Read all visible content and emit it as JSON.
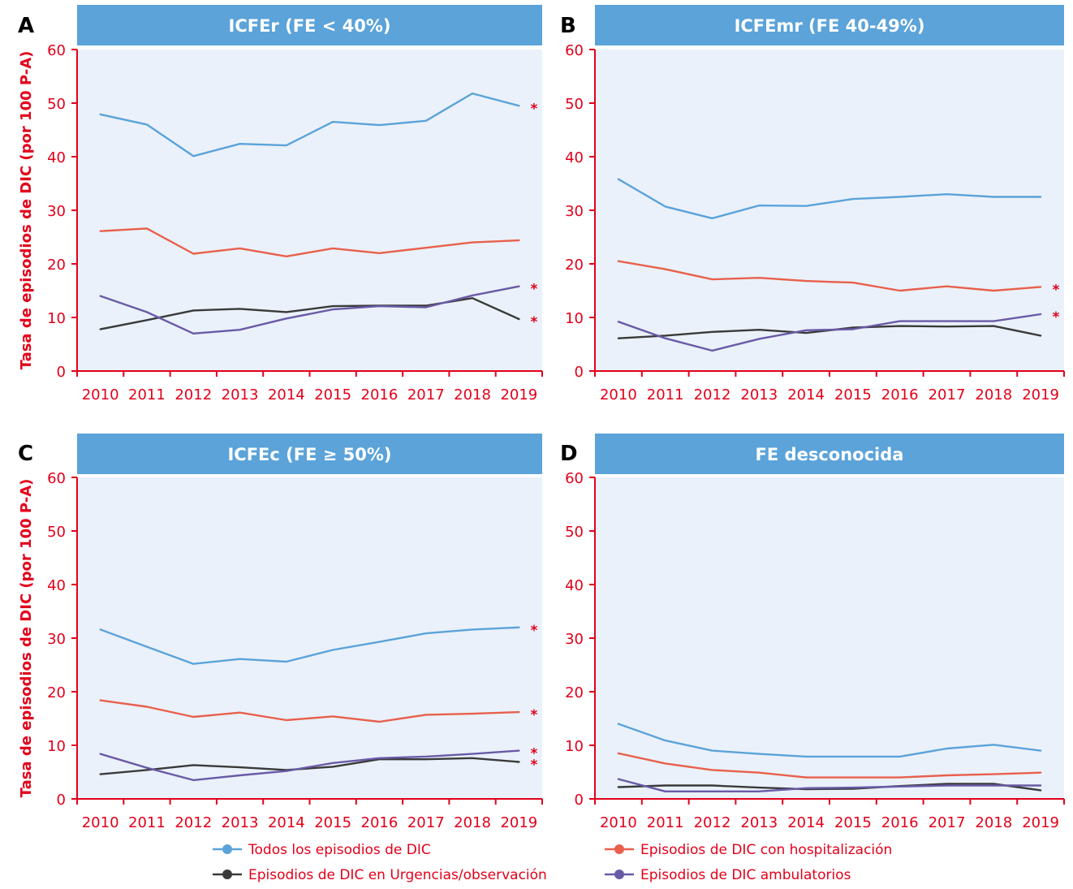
{
  "chart_data": [
    {
      "type": "line",
      "panel": "A",
      "title": "ICFEr (FE < 40%)",
      "ylabel": "Tasa de episodios de DIC (por 100 P-A)",
      "xlabel": "",
      "ylim": [
        0,
        60
      ],
      "yticks": [
        0,
        10,
        20,
        30,
        40,
        50,
        60
      ],
      "x": [
        2010,
        2011,
        2012,
        2013,
        2014,
        2015,
        2016,
        2017,
        2018,
        2019
      ],
      "grid": false,
      "series": [
        {
          "name": "Todos los episodios de DIC",
          "color": "#5ba3d9",
          "values": [
            47.9,
            46.0,
            40.1,
            42.4,
            42.1,
            46.5,
            45.9,
            46.7,
            51.8,
            49.5
          ],
          "marked": true
        },
        {
          "name": "Episodios de DIC con hospitalización",
          "color": "#e8604c",
          "values": [
            26.1,
            26.6,
            21.9,
            22.9,
            21.4,
            22.9,
            22.0,
            23.0,
            24.0,
            24.4
          ],
          "marked": false
        },
        {
          "name": "Episodios de DIC en Urgencias/observación",
          "color": "#3a3a3a",
          "values": [
            7.8,
            9.5,
            11.3,
            11.6,
            11.0,
            12.1,
            12.2,
            12.2,
            13.6,
            9.7
          ],
          "marked": true
        },
        {
          "name": "Episodios de DIC ambulatorios",
          "color": "#6a5aa6",
          "values": [
            14.0,
            11.0,
            7.0,
            7.7,
            9.8,
            11.5,
            12.1,
            11.9,
            14.1,
            15.8
          ],
          "marked": true
        }
      ]
    },
    {
      "type": "line",
      "panel": "B",
      "title": "ICFEmr (FE 40-49%)",
      "ylabel": "",
      "xlabel": "",
      "ylim": [
        0,
        60
      ],
      "yticks": [
        0,
        10,
        20,
        30,
        40,
        50,
        60
      ],
      "x": [
        2010,
        2011,
        2012,
        2013,
        2014,
        2015,
        2016,
        2017,
        2018,
        2019
      ],
      "grid": false,
      "series": [
        {
          "name": "Todos los episodios de DIC",
          "color": "#5ba3d9",
          "values": [
            35.8,
            30.7,
            28.5,
            30.9,
            30.8,
            32.1,
            32.5,
            33.0,
            32.5,
            32.5
          ],
          "marked": false
        },
        {
          "name": "Episodios de DIC con hospitalización",
          "color": "#e8604c",
          "values": [
            20.5,
            19.0,
            17.1,
            17.4,
            16.8,
            16.5,
            15.0,
            15.8,
            15.0,
            15.7
          ],
          "marked": true
        },
        {
          "name": "Episodios de DIC en Urgencias/observación",
          "color": "#3a3a3a",
          "values": [
            6.1,
            6.6,
            7.3,
            7.7,
            7.1,
            8.1,
            8.4,
            8.3,
            8.4,
            6.6
          ],
          "marked": false
        },
        {
          "name": "Episodios de DIC ambulatorios",
          "color": "#6a5aa6",
          "values": [
            9.2,
            6.1,
            3.8,
            6.0,
            7.6,
            7.8,
            9.3,
            9.3,
            9.3,
            10.6
          ],
          "marked": true
        }
      ]
    },
    {
      "type": "line",
      "panel": "C",
      "title": "ICFEc (FE ≥ 50%)",
      "ylabel": "Tasa de episodios de DIC (por 100 P-A)",
      "xlabel": "",
      "ylim": [
        0,
        60
      ],
      "yticks": [
        0,
        10,
        20,
        30,
        40,
        50,
        60
      ],
      "x": [
        2010,
        2011,
        2012,
        2013,
        2014,
        2015,
        2016,
        2017,
        2018,
        2019
      ],
      "grid": false,
      "series": [
        {
          "name": "Todos los episodios de DIC",
          "color": "#5ba3d9",
          "values": [
            31.6,
            28.4,
            25.2,
            26.1,
            25.6,
            27.8,
            29.3,
            30.9,
            31.6,
            32.0
          ],
          "marked": true
        },
        {
          "name": "Episodios de DIC con hospitalización",
          "color": "#e8604c",
          "values": [
            18.4,
            17.2,
            15.3,
            16.1,
            14.7,
            15.4,
            14.4,
            15.7,
            15.9,
            16.2
          ],
          "marked": true
        },
        {
          "name": "Episodios de DIC en Urgencias/observación",
          "color": "#3a3a3a",
          "values": [
            4.6,
            5.4,
            6.3,
            5.9,
            5.4,
            6.0,
            7.4,
            7.4,
            7.6,
            6.9
          ],
          "marked": true
        },
        {
          "name": "Episodios de DIC ambulatorios",
          "color": "#6a5aa6",
          "values": [
            8.4,
            5.8,
            3.5,
            4.4,
            5.2,
            6.7,
            7.6,
            7.9,
            8.4,
            9.0
          ],
          "marked": true
        }
      ]
    },
    {
      "type": "line",
      "panel": "D",
      "title": "FE desconocida",
      "ylabel": "",
      "xlabel": "",
      "ylim": [
        0,
        60
      ],
      "yticks": [
        0,
        10,
        20,
        30,
        40,
        50,
        60
      ],
      "x": [
        2010,
        2011,
        2012,
        2013,
        2014,
        2015,
        2016,
        2017,
        2018,
        2019
      ],
      "grid": false,
      "series": [
        {
          "name": "Todos los episodios de DIC",
          "color": "#5ba3d9",
          "values": [
            14.0,
            10.9,
            9.0,
            8.4,
            7.9,
            7.9,
            7.9,
            9.4,
            10.1,
            9.0
          ],
          "marked": false
        },
        {
          "name": "Episodios de DIC con hospitalización",
          "color": "#e8604c",
          "values": [
            8.5,
            6.6,
            5.4,
            4.9,
            4.0,
            4.0,
            4.0,
            4.4,
            4.6,
            4.9
          ],
          "marked": false
        },
        {
          "name": "Episodios de DIC en Urgencias/observación",
          "color": "#3a3a3a",
          "values": [
            2.2,
            2.5,
            2.5,
            2.1,
            1.8,
            1.9,
            2.4,
            2.8,
            2.8,
            1.6
          ],
          "marked": false
        },
        {
          "name": "Episodios de DIC ambulatorios",
          "color": "#6a5aa6",
          "values": [
            3.7,
            1.4,
            1.4,
            1.4,
            2.0,
            2.1,
            2.3,
            2.5,
            2.5,
            2.5
          ],
          "marked": false
        }
      ]
    }
  ],
  "legend": {
    "placement": "bottom",
    "items": [
      {
        "label": "Todos los episodios de DIC",
        "color": "#5ba3d9"
      },
      {
        "label": "Episodios de DIC con hospitalización",
        "color": "#e8604c"
      },
      {
        "label": "Episodios de DIC en Urgencias/observación",
        "color": "#3a3a3a"
      },
      {
        "label": "Episodios de DIC ambulatorios",
        "color": "#6a5aa6"
      }
    ]
  },
  "significance_marker": "*",
  "colors": {
    "axis": "#e2001a",
    "plot_background": "#eaf1fa",
    "title_bar": "#5ba3d9",
    "title_text": "#ffffff"
  }
}
